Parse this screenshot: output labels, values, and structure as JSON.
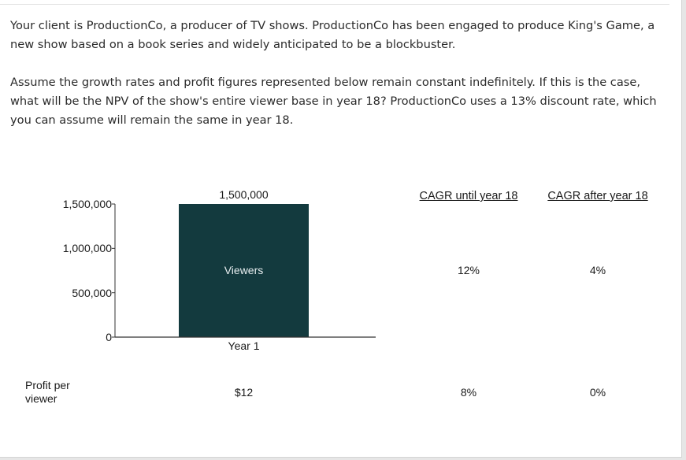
{
  "question": {
    "paragraph1": "Your client is ProductionCo, a producer of TV shows. ProductionCo has been engaged to produce King's Game, a new show based on a book series and widely anticipated to be a blockbuster.",
    "paragraph2": "Assume the growth rates and profit figures represented below remain constant indefinitely. If this is the case, what will be the NPV of the show's entire viewer base in year 18? ProductionCo uses a 13% discount rate, which you can assume will remain the same in year 18."
  },
  "chart_data": {
    "type": "bar",
    "categories": [
      "Year 1"
    ],
    "series": [
      {
        "values": [
          1500000
        ]
      }
    ],
    "bar_label": "Viewers",
    "value_label": "1,500,000",
    "ylim": [
      0,
      1500000
    ],
    "yticks": [
      0,
      500000,
      1000000,
      1500000
    ],
    "ytick_labels": [
      "0",
      "500,000",
      "1,000,000",
      "1,500,000"
    ],
    "bar_color": "#133a3e"
  },
  "table": {
    "col_headers": [
      "CAGR until year 18",
      "CAGR after year 18"
    ],
    "viewers_row": [
      "12%",
      "4%"
    ],
    "profit_row": {
      "label": "Profit per viewer",
      "year1": "$12",
      "values": [
        "8%",
        "0%"
      ]
    }
  }
}
